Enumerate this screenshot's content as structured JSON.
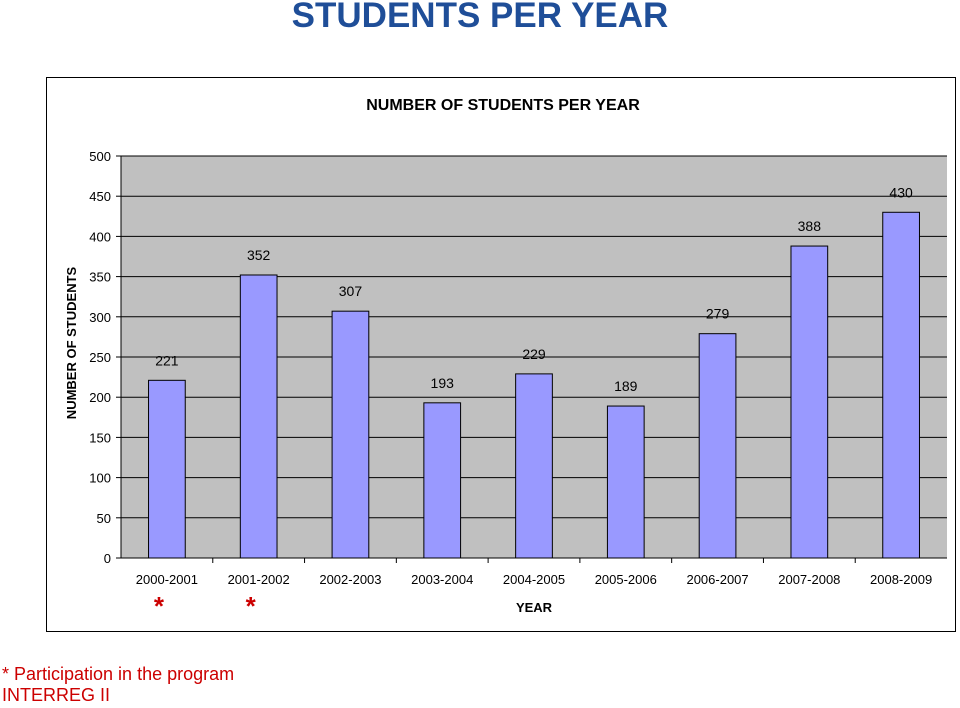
{
  "page": {
    "title": "STUDENTS PER YEAR",
    "footnote_lines": [
      "* Participation in the program",
      "INTERREG II"
    ]
  },
  "colors": {
    "title": "#1f4e98",
    "bar": "#9999ff",
    "plot_background": "#c0c0c0",
    "footnote": "#cc0000"
  },
  "chart_data": {
    "type": "bar",
    "title": "NUMBER OF STUDENTS PER YEAR",
    "xlabel": "YEAR",
    "ylabel": "NUMBER OF STUDENTS",
    "categories": [
      "2000-2001",
      "2001-2002",
      "2002-2003",
      "2003-2004",
      "2004-2005",
      "2005-2006",
      "2006-2007",
      "2007-2008",
      "2008-2009"
    ],
    "values": [
      221,
      352,
      307,
      193,
      229,
      189,
      279,
      388,
      430
    ],
    "category_markers": [
      "*",
      "*",
      "",
      "",
      "",
      "",
      "",
      "",
      ""
    ],
    "ylim": [
      0,
      500
    ],
    "yticks": [
      0,
      50,
      100,
      150,
      200,
      250,
      300,
      350,
      400,
      450,
      500
    ],
    "grid": true,
    "legend": "none",
    "data_labels": true
  }
}
